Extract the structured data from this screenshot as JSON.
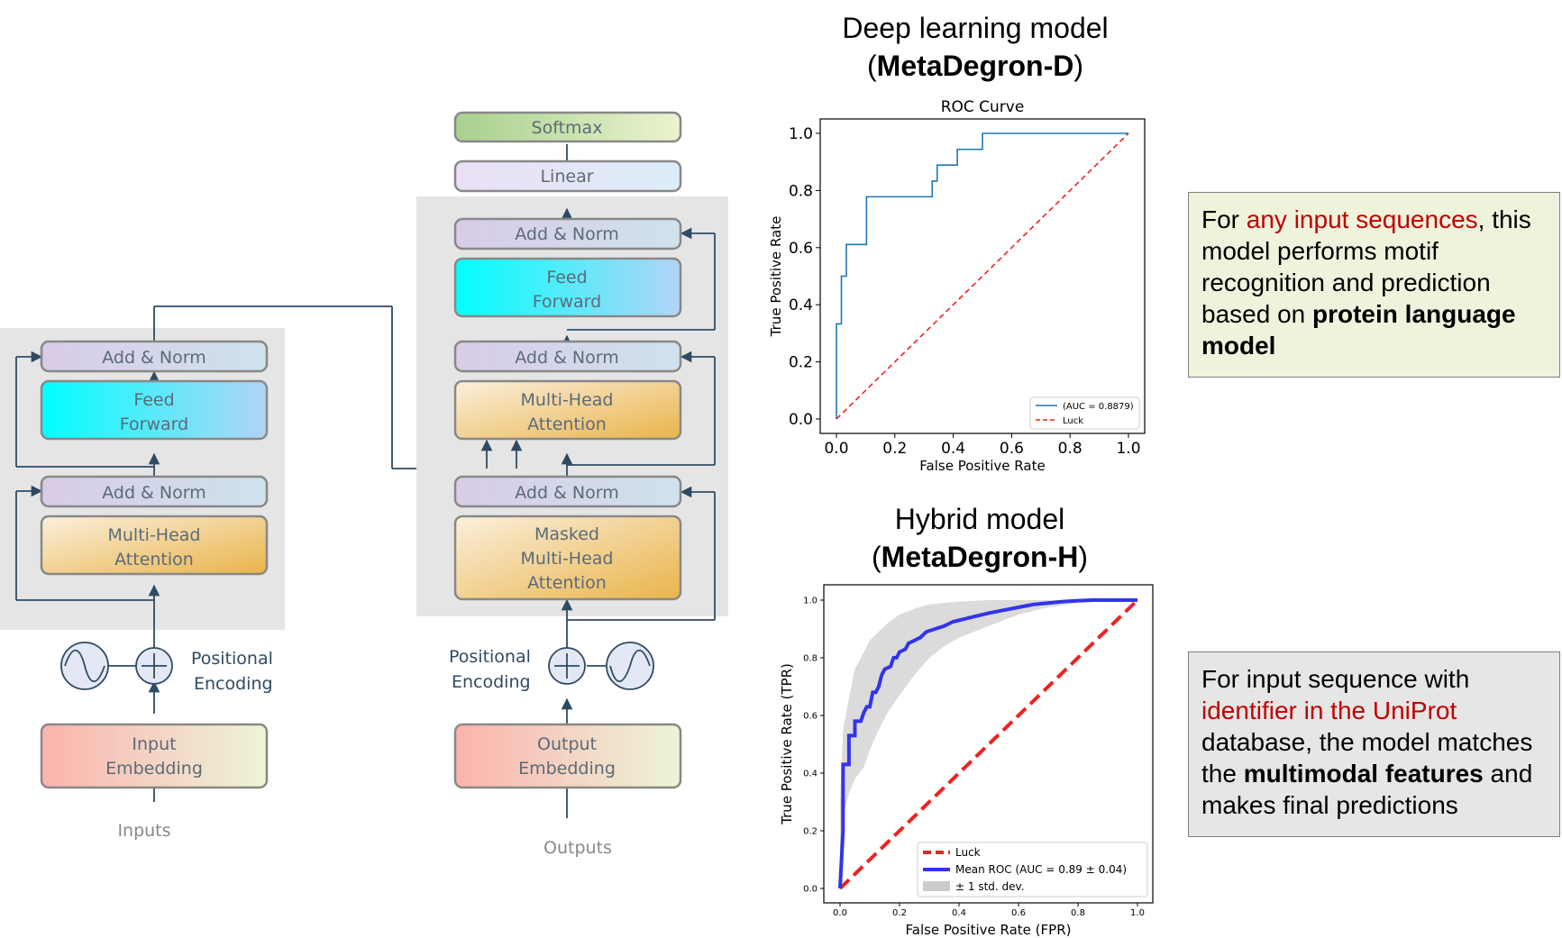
{
  "encoder": {
    "add_norm_top": "Add & Norm",
    "feed_forward": [
      "Feed",
      "Forward"
    ],
    "add_norm_bottom": "Add & Norm",
    "mha": [
      "Multi-Head",
      "Attention"
    ],
    "positional_encoding": [
      "Positional",
      "Encoding"
    ],
    "embedding": [
      "Input",
      "Embedding"
    ],
    "input_label": "Inputs"
  },
  "decoder": {
    "softmax": "Softmax",
    "linear": "Linear",
    "add_norm_3": "Add & Norm",
    "feed_forward": [
      "Feed",
      "Forward"
    ],
    "add_norm_2": "Add & Norm",
    "mha": [
      "Multi-Head",
      "Attention"
    ],
    "add_norm_1": "Add & Norm",
    "masked_mha": [
      "Masked",
      "Multi-Head",
      "Attention"
    ],
    "positional_encoding": [
      "Positional",
      "Encoding"
    ],
    "embedding": [
      "Output",
      "Embedding"
    ],
    "output_label": "Outputs"
  },
  "headings": {
    "deep": {
      "line1": "Deep learning model",
      "open": "(",
      "bold": "MetaDegron-D",
      "close": ")"
    },
    "hybrid": {
      "line1": "Hybrid model",
      "open": "(",
      "bold": "MetaDegron-H",
      "close": ")"
    }
  },
  "notes": {
    "deep": [
      "For ",
      "any input sequences",
      ", this model performs motif recognition and prediction based on ",
      "protein language model"
    ],
    "hybrid": [
      "For input sequence with ",
      "identifier in the UniProt",
      " database, the model matches the ",
      "multimodal features",
      " and makes final predictions"
    ]
  },
  "colors": {
    "accent_red": "#c00000",
    "note_deep_bg": "#eff3dc",
    "note_hybrid_bg": "#e6e6e6",
    "roc_line": "#1f77b4",
    "luck_red": "#ee2222",
    "mean_blue": "#3333ee"
  },
  "chart_data": [
    {
      "type": "line",
      "title": "ROC Curve",
      "xlabel": "False Positive Rate",
      "ylabel": "True Positive Rate",
      "xlim": [
        0.0,
        1.0
      ],
      "ylim": [
        0.0,
        1.0
      ],
      "xticks": [
        "0.0",
        "0.2",
        "0.4",
        "0.6",
        "0.8",
        "1.0"
      ],
      "yticks": [
        "0.0",
        "0.2",
        "0.4",
        "0.6",
        "0.8",
        "1.0"
      ],
      "grid": false,
      "legend_position": "lower right",
      "series": [
        {
          "name": "(AUC = 0.8879)",
          "style": "solid",
          "x": [
            0,
            0,
            0.017,
            0.017,
            0.034,
            0.034,
            0.103,
            0.103,
            0.328,
            0.328,
            0.345,
            0.345,
            0.414,
            0.414,
            0.5,
            0.5,
            1.0
          ],
          "y": [
            0,
            0.333,
            0.333,
            0.5,
            0.5,
            0.611,
            0.611,
            0.778,
            0.778,
            0.833,
            0.833,
            0.889,
            0.889,
            0.944,
            0.944,
            1.0,
            1.0
          ]
        },
        {
          "name": "Luck",
          "style": "dashed",
          "x": [
            0,
            1
          ],
          "y": [
            0,
            1
          ]
        }
      ]
    },
    {
      "type": "line",
      "title": "",
      "xlabel": "False Positive Rate (FPR)",
      "ylabel": "True Positive Rate (TPR)",
      "xlim": [
        0.0,
        1.0
      ],
      "ylim": [
        0.0,
        1.0
      ],
      "xticks": [
        "0.0",
        "0.2",
        "0.4",
        "0.6",
        "0.8",
        "1.0"
      ],
      "yticks": [
        "0.0",
        "0.2",
        "0.4",
        "0.6",
        "0.8",
        "1.0"
      ],
      "grid": false,
      "legend_position": "lower right",
      "series": [
        {
          "name": "Luck",
          "style": "dashed",
          "x": [
            0,
            1
          ],
          "y": [
            0,
            1
          ]
        },
        {
          "name": "Mean ROC (AUC = 0.89 ± 0.04)",
          "style": "solid",
          "x": [
            0,
            0.01,
            0.01,
            0.03,
            0.03,
            0.05,
            0.05,
            0.07,
            0.08,
            0.09,
            0.1,
            0.11,
            0.12,
            0.13,
            0.14,
            0.15,
            0.17,
            0.18,
            0.19,
            0.2,
            0.22,
            0.23,
            0.25,
            0.27,
            0.29,
            0.32,
            0.35,
            0.38,
            0.42,
            0.46,
            0.5,
            0.55,
            0.6,
            0.65,
            0.7,
            0.75,
            0.8,
            0.85,
            0.9,
            1.0
          ],
          "y": [
            0,
            0.2,
            0.43,
            0.43,
            0.53,
            0.53,
            0.58,
            0.58,
            0.61,
            0.63,
            0.63,
            0.68,
            0.68,
            0.7,
            0.74,
            0.76,
            0.77,
            0.8,
            0.8,
            0.82,
            0.83,
            0.85,
            0.86,
            0.87,
            0.89,
            0.9,
            0.91,
            0.925,
            0.935,
            0.945,
            0.955,
            0.965,
            0.975,
            0.985,
            0.99,
            0.995,
            0.998,
            1.0,
            1.0,
            1.0
          ]
        },
        {
          "name": "± 1 std. dev.",
          "style": "band",
          "x": [
            0,
            0.01,
            0.03,
            0.05,
            0.08,
            0.1,
            0.13,
            0.16,
            0.2,
            0.25,
            0.3,
            0.35,
            0.4,
            0.5,
            0.6,
            0.7,
            0.8,
            1.0
          ],
          "upper": [
            0.3,
            0.55,
            0.66,
            0.76,
            0.82,
            0.86,
            0.89,
            0.92,
            0.95,
            0.97,
            0.985,
            0.99,
            0.995,
            1.0,
            1.0,
            1.0,
            1.0,
            1.0
          ],
          "lower": [
            0.1,
            0.25,
            0.33,
            0.38,
            0.42,
            0.48,
            0.55,
            0.61,
            0.67,
            0.74,
            0.8,
            0.84,
            0.87,
            0.91,
            0.95,
            0.975,
            0.99,
            1.0
          ]
        }
      ]
    }
  ]
}
